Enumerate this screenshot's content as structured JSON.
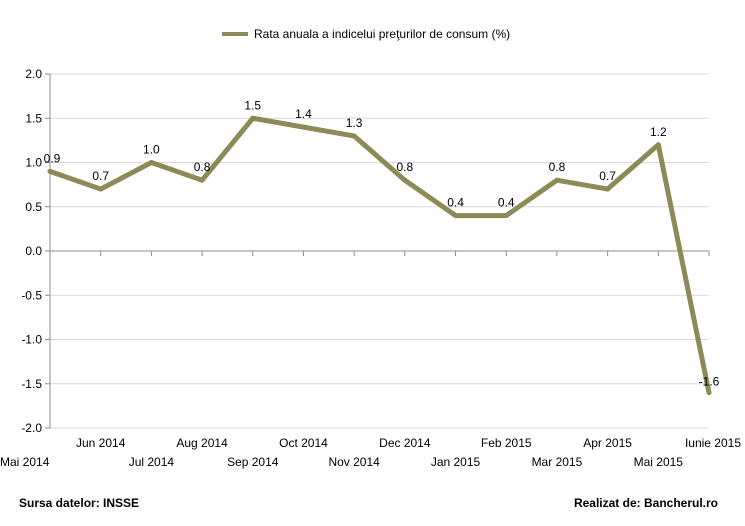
{
  "chart_data": {
    "type": "line",
    "categories": [
      "Mai 2014",
      "Jun 2014",
      "Jul 2014",
      "Aug 2014",
      "Sep 2014",
      "Oct 2014",
      "Nov 2014",
      "Dec 2014",
      "Jan 2015",
      "Feb 2015",
      "Mar 2015",
      "Apr 2015",
      "Mai 2015",
      "Iunie 2015"
    ],
    "series": [
      {
        "name": "Rata anuala a indicelui preţurilor de consum (%)",
        "color": "#8c8a57",
        "values": [
          0.9,
          0.7,
          1.0,
          0.8,
          1.5,
          1.4,
          1.3,
          0.8,
          0.4,
          0.4,
          0.8,
          0.7,
          1.2,
          -1.6
        ],
        "labels": [
          "0.9",
          "0.7",
          "1.0",
          "0.8",
          "1.5",
          "1.4",
          "1.3",
          "0.8",
          "0.4",
          "0.4",
          "0.8",
          "0.7",
          "1.2",
          "-1.6"
        ]
      }
    ],
    "ylim": [
      -2.0,
      2.0
    ],
    "yticks": [
      "2.0",
      "1.5",
      "1.0",
      "0.5",
      "0.0",
      "-0.5",
      "-1.0",
      "-1.5",
      "-2.0"
    ],
    "grid": true,
    "legend_position": "top"
  },
  "footer": {
    "source": "Sursa datelor: INSSE",
    "credit": "Realizat de: Bancherul.ro"
  }
}
